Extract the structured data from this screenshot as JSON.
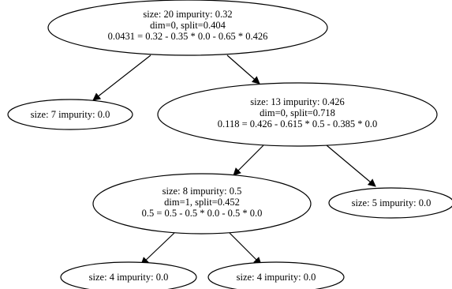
{
  "nodes": {
    "root": {
      "line1": "size: 20 impurity: 0.32",
      "line2": "dim=0, split=0.404",
      "line3": "0.0431 = 0.32 - 0.35 * 0.0 -  0.65 * 0.426"
    },
    "left_leaf": {
      "line1": "size: 7 impurity: 0.0"
    },
    "right_node": {
      "line1": "size: 13 impurity: 0.426",
      "line2": "dim=0, split=0.718",
      "line3": "0.118 = 0.426 - 0.615 * 0.5 -  0.385 * 0.0"
    },
    "mid_node": {
      "line1": "size: 8 impurity: 0.5",
      "line2": "dim=1, split=0.452",
      "line3": "0.5 = 0.5 - 0.5 * 0.0 -  0.5 * 0.0"
    },
    "right_leaf": {
      "line1": "size: 5 impurity: 0.0"
    },
    "bottom_left_leaf": {
      "line1": "size: 4 impurity: 0.0"
    },
    "bottom_right_leaf": {
      "line1": "size: 4 impurity: 0.0"
    }
  },
  "colors": {
    "stroke": "#000000",
    "background": "#ffffff"
  }
}
